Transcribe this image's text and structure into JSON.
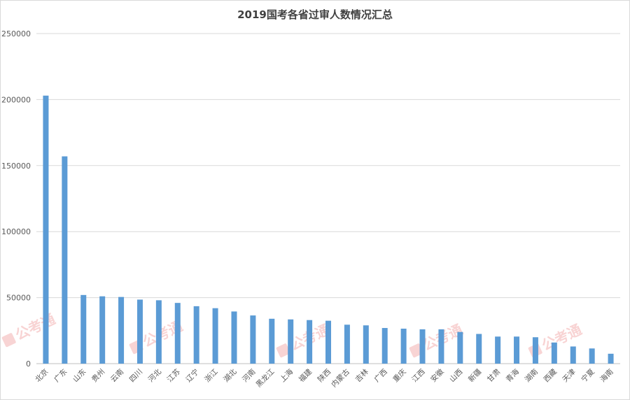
{
  "chart_data": {
    "type": "bar",
    "title": "2019国考各省过审人数情况汇总",
    "xlabel": "",
    "ylabel": "",
    "ylim": [
      0,
      250000
    ],
    "yticks": [
      0,
      50000,
      100000,
      150000,
      200000,
      250000
    ],
    "grid": true,
    "legend": "none",
    "bar_color": "#5b9bd5",
    "categories": [
      "北京",
      "广东",
      "山东",
      "贵州",
      "云南",
      "四川",
      "河北",
      "江苏",
      "辽宁",
      "浙江",
      "湖北",
      "河南",
      "黑龙江",
      "上海",
      "福建",
      "陕西",
      "内蒙古",
      "吉林",
      "广西",
      "重庆",
      "江西",
      "安徽",
      "山西",
      "新疆",
      "甘肃",
      "青海",
      "湖南",
      "西藏",
      "天津",
      "宁夏",
      "海南"
    ],
    "values": [
      203000,
      157000,
      52000,
      51000,
      50500,
      48500,
      48000,
      46000,
      43500,
      42000,
      39500,
      36500,
      34000,
      33500,
      33000,
      32500,
      29500,
      29000,
      27000,
      26500,
      26000,
      26000,
      24000,
      22500,
      20500,
      20500,
      20000,
      16000,
      13000,
      11500,
      7500
    ]
  },
  "watermark": {
    "text": "公考通",
    "color": "#f0a0a0"
  }
}
